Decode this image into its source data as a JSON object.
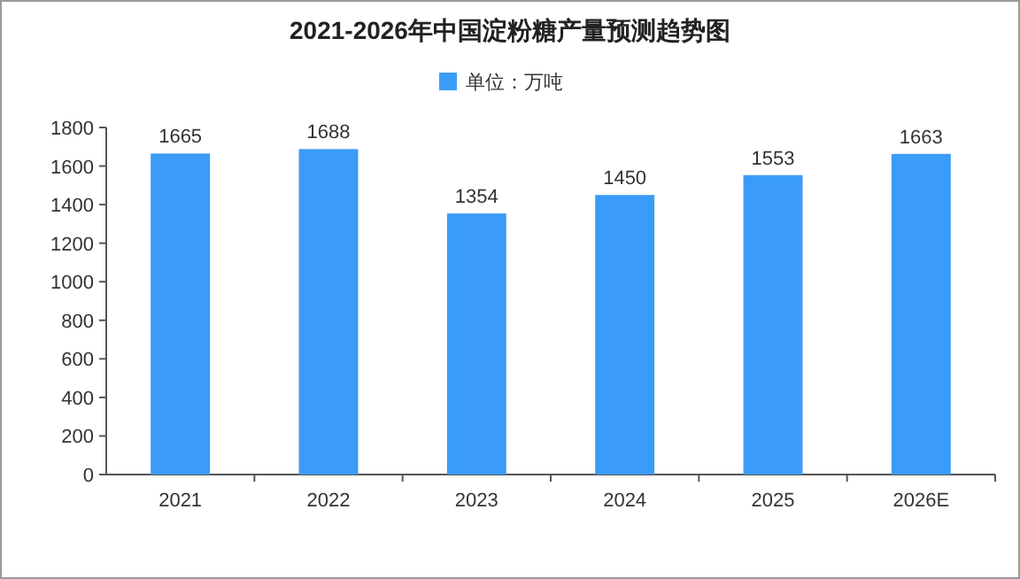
{
  "chart_data": {
    "type": "bar",
    "title": "2021-2026年中国淀粉糖产量预测趋势图",
    "categories": [
      "2021",
      "2022",
      "2023",
      "2024",
      "2025",
      "2026E"
    ],
    "series": [
      {
        "name": "单位：万吨",
        "color": "#3b9cf7",
        "values": [
          1665,
          1688,
          1354,
          1450,
          1553,
          1663
        ]
      }
    ],
    "ylim": [
      0,
      1800
    ],
    "yticks": [
      0,
      200,
      400,
      600,
      800,
      1000,
      1200,
      1400,
      1600,
      1800
    ],
    "data_labels": true,
    "legend": "top"
  }
}
